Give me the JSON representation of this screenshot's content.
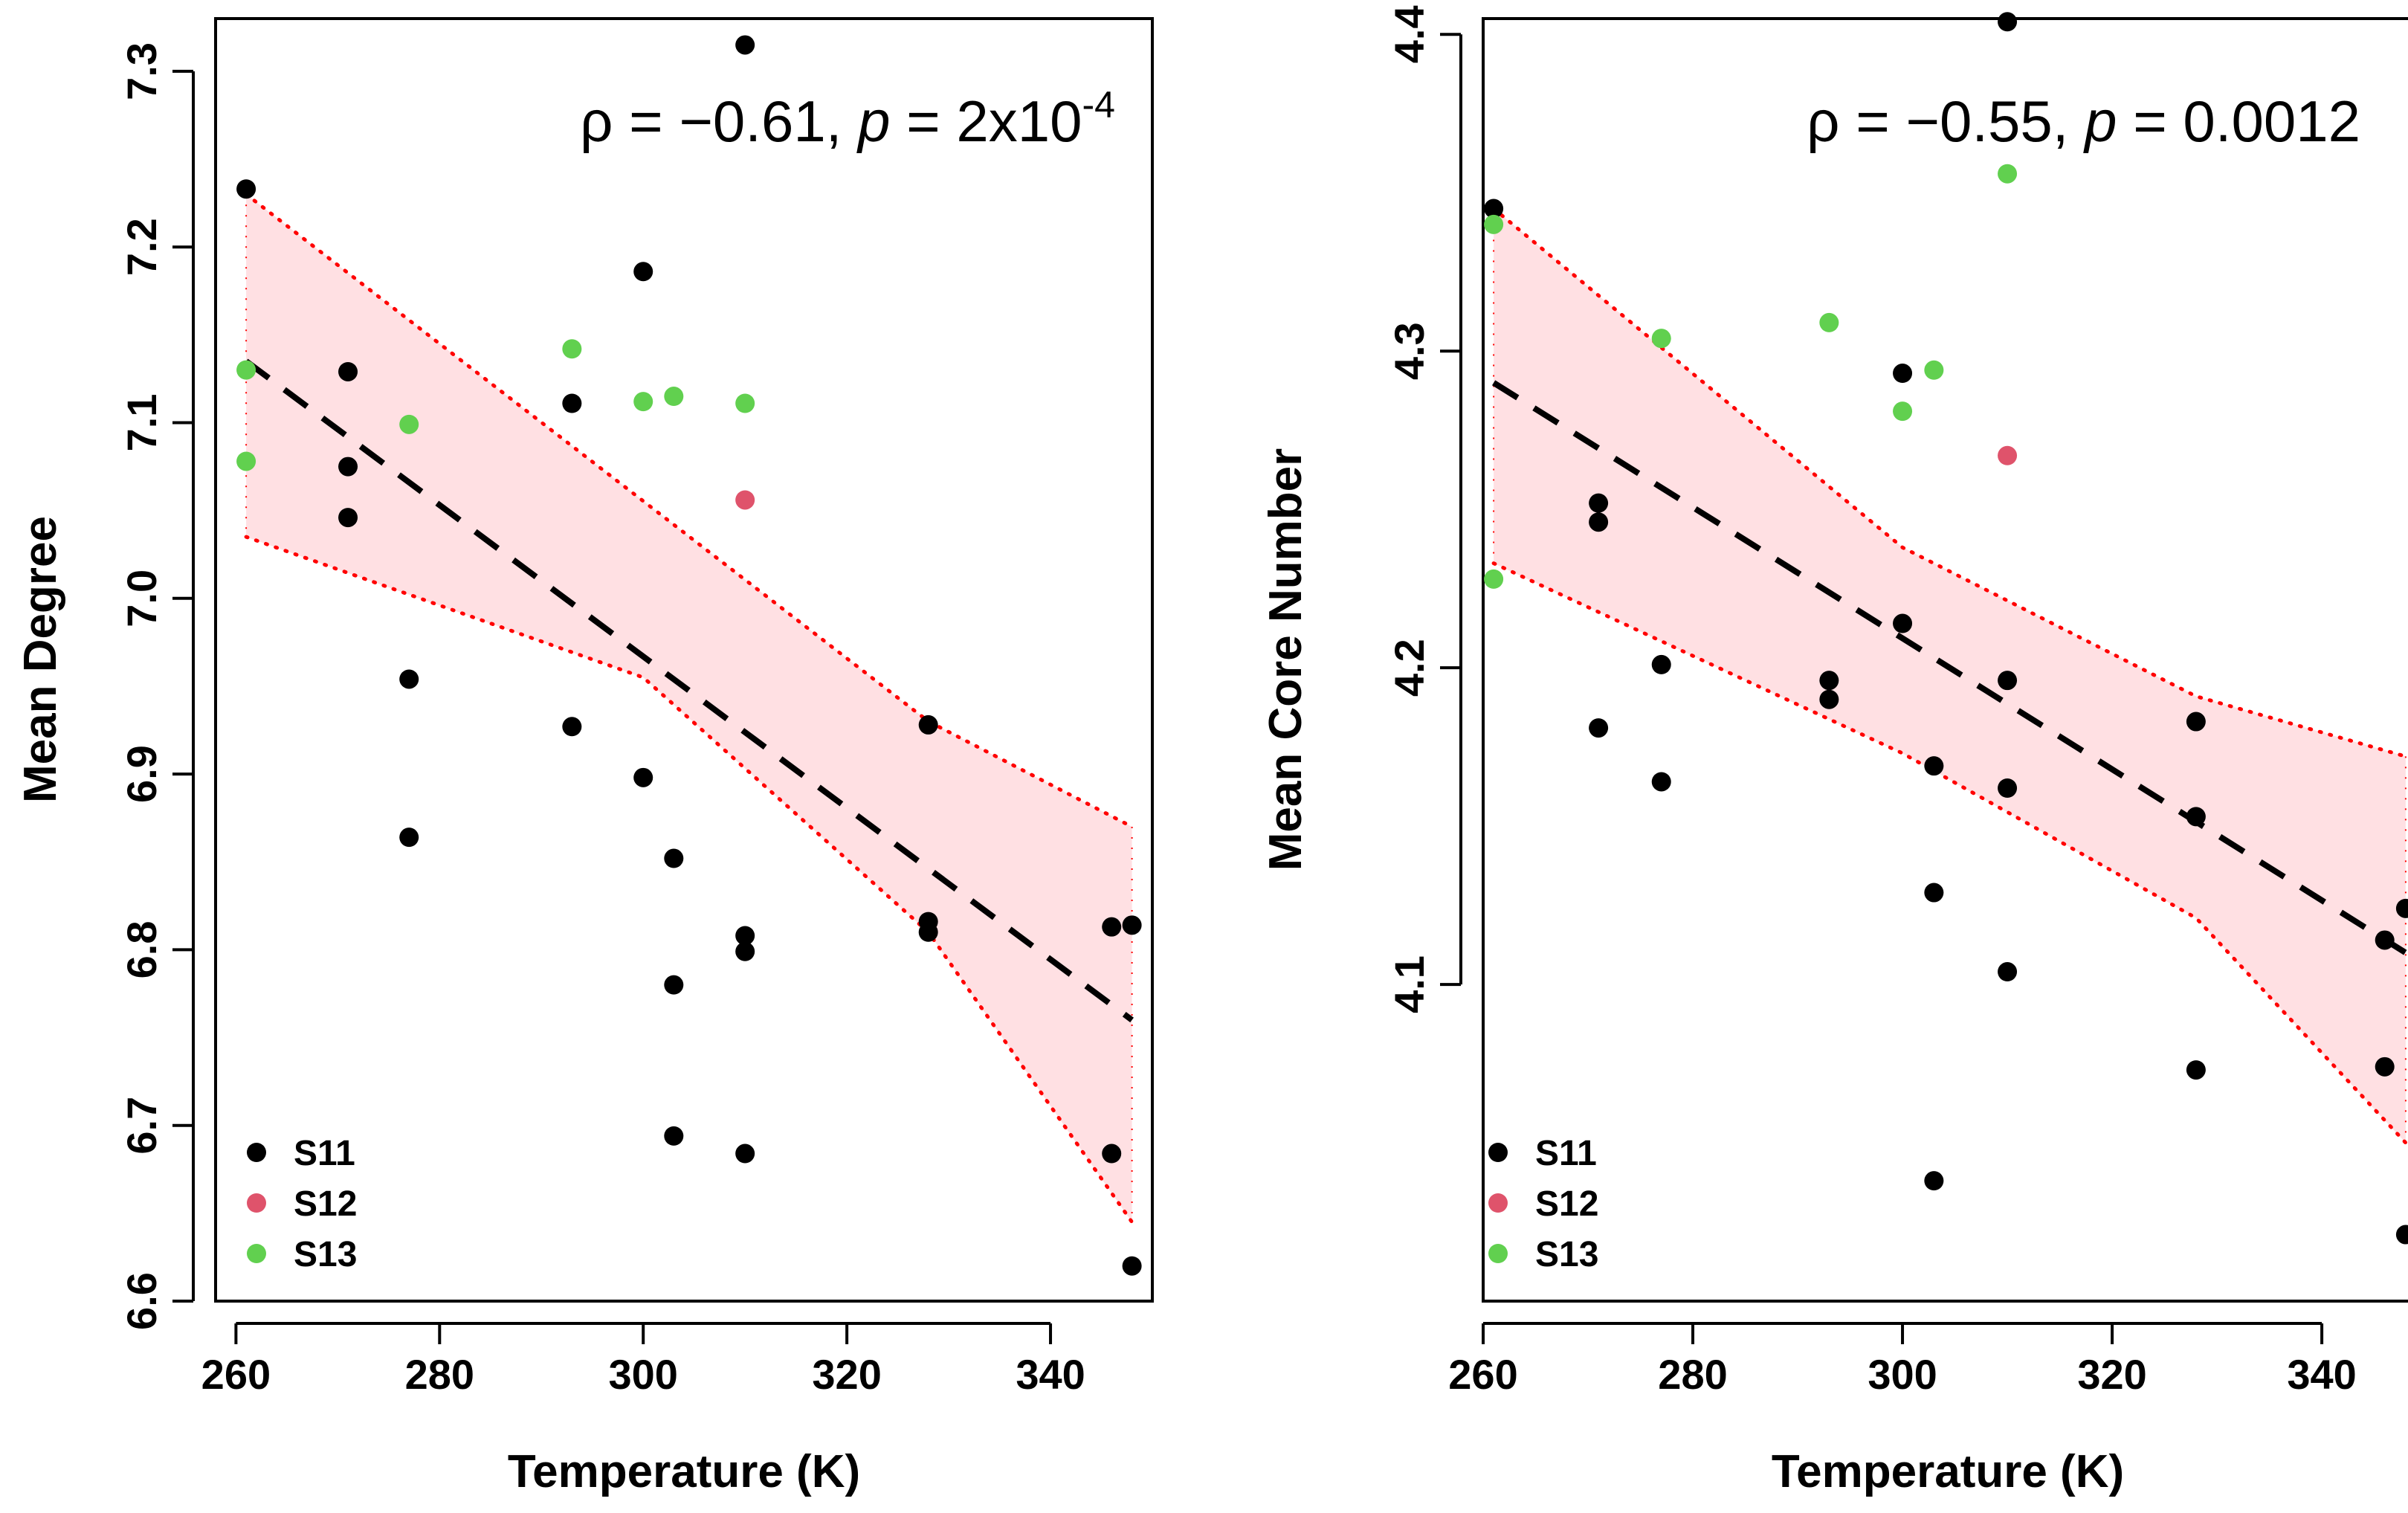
{
  "colors": {
    "S11": "#000000",
    "S12": "#DF536B",
    "S13": "#61D04F",
    "band_fill": "#FFE0E3",
    "band_edge": "#FF0000",
    "fit_line": "#000000"
  },
  "chart_data": [
    {
      "type": "scatter",
      "xlabel": "Temperature (K)",
      "ylabel": "Mean Degree",
      "xlim": [
        258,
        350
      ],
      "ylim": [
        6.6,
        7.33
      ],
      "xticks": [
        "260",
        "280",
        "300",
        "320",
        "340"
      ],
      "yticks": [
        "6.6",
        "6.7",
        "6.8",
        "6.9",
        "7.0",
        "7.1",
        "7.2",
        "7.3"
      ],
      "annotation": {
        "rho_symbol": "ρ",
        "rho_value": " = −0.61, ",
        "p_symbol": "p",
        "p_value": " = 2x10",
        "p_exponent": "-4"
      },
      "legend": {
        "position": "bottom-left",
        "entries": [
          "S11",
          "S12",
          "S13"
        ]
      },
      "fit": {
        "x": [
          261,
          348
        ],
        "y": [
          7.135,
          6.76
        ]
      },
      "band": {
        "upper": [
          [
            261,
            7.23
          ],
          [
            328,
            6.93
          ],
          [
            348,
            6.87
          ]
        ],
        "lower": [
          [
            261,
            7.035
          ],
          [
            300,
            6.955
          ],
          [
            328,
            6.81
          ],
          [
            348,
            6.645
          ]
        ]
      },
      "series": [
        {
          "name": "S11",
          "x": [
            261,
            271,
            271,
            271,
            277,
            277,
            293,
            293,
            300,
            300,
            303,
            303,
            303,
            310,
            310,
            310,
            310,
            328,
            328,
            328,
            346,
            346,
            348,
            348
          ],
          "y": [
            7.233,
            7.129,
            7.075,
            7.046,
            6.954,
            6.864,
            7.111,
            6.927,
            7.186,
            6.898,
            6.852,
            6.78,
            6.694,
            7.315,
            6.808,
            6.799,
            6.684,
            6.928,
            6.816,
            6.81,
            6.813,
            6.684,
            6.814,
            6.62
          ]
        },
        {
          "name": "S12",
          "x": [
            310
          ],
          "y": [
            7.056
          ]
        },
        {
          "name": "S13",
          "x": [
            261,
            261,
            277,
            293,
            300,
            303,
            310
          ],
          "y": [
            7.13,
            7.078,
            7.099,
            7.142,
            7.112,
            7.115,
            7.111
          ]
        }
      ]
    },
    {
      "type": "scatter",
      "xlabel": "Temperature (K)",
      "ylabel": "Mean Core Number",
      "xlim": [
        260,
        349
      ],
      "ylim": [
        4.0,
        4.405
      ],
      "xticks": [
        "260",
        "280",
        "300",
        "320",
        "340"
      ],
      "yticks": [
        "4.1",
        "4.2",
        "4.3",
        "4.4"
      ],
      "annotation": {
        "rho_symbol": "ρ",
        "rho_value": " = −0.55, ",
        "p_symbol": "p",
        "p_value": " = 0.0012",
        "p_exponent": ""
      },
      "legend": {
        "position": "bottom-left",
        "entries": [
          "S11",
          "S12",
          "S13"
        ]
      },
      "fit": {
        "x": [
          261,
          348
        ],
        "y": [
          4.29,
          4.11
        ]
      },
      "band": {
        "upper": [
          [
            261,
            4.345
          ],
          [
            300,
            4.238
          ],
          [
            328,
            4.191
          ],
          [
            348,
            4.172
          ]
        ],
        "lower": [
          [
            261,
            4.233
          ],
          [
            300,
            4.173
          ],
          [
            328,
            4.121
          ],
          [
            348,
            4.05
          ]
        ]
      },
      "series": [
        {
          "name": "S11",
          "x": [
            261,
            271,
            271,
            271,
            277,
            277,
            293,
            293,
            300,
            300,
            303,
            303,
            303,
            310,
            310,
            310,
            310,
            328,
            328,
            328,
            346,
            346,
            348,
            348
          ],
          "y": [
            4.345,
            4.252,
            4.246,
            4.181,
            4.201,
            4.164,
            4.196,
            4.19,
            4.293,
            4.214,
            4.169,
            4.129,
            4.038,
            4.404,
            4.196,
            4.162,
            4.104,
            4.183,
            4.153,
            4.073,
            4.114,
            4.074,
            4.124,
            4.021
          ]
        },
        {
          "name": "S12",
          "x": [
            310
          ],
          "y": [
            4.267
          ]
        },
        {
          "name": "S13",
          "x": [
            261,
            261,
            277,
            293,
            300,
            303,
            310
          ],
          "y": [
            4.34,
            4.228,
            4.304,
            4.309,
            4.281,
            4.294,
            4.356
          ]
        }
      ]
    }
  ]
}
